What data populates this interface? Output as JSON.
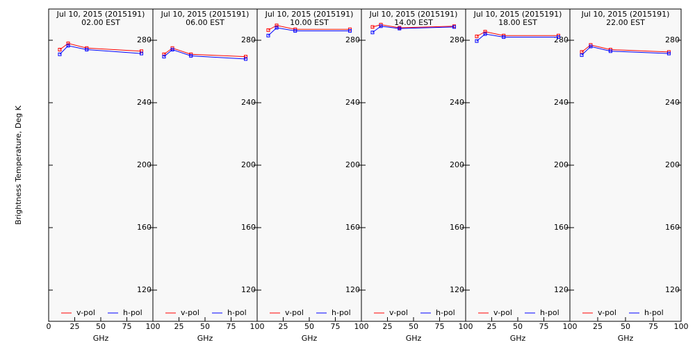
{
  "chart_data": [
    {
      "type": "line",
      "title": "Jul 10, 2015 (2015191)",
      "subtitle": "02.00 EST",
      "ylabel": "Brightness Temperature, Deg K",
      "xlabel": "GHz",
      "x": [
        10.65,
        18.7,
        36.5,
        89.0
      ],
      "xlim": [
        0,
        100
      ],
      "xticks": [
        0,
        25,
        50,
        75,
        100
      ],
      "ylim": [
        100,
        300
      ],
      "yticks": [
        120,
        160,
        200,
        240,
        280
      ],
      "series": [
        {
          "name": "v-pol",
          "color": "#ff0000",
          "values": [
            274,
            278,
            275,
            273
          ]
        },
        {
          "name": "h-pol",
          "color": "#0000ff",
          "values": [
            271,
            276.5,
            274,
            271.5
          ]
        }
      ]
    },
    {
      "type": "line",
      "title": "Jul 10, 2015 (2015191)",
      "subtitle": "06.00 EST",
      "xlabel": "GHz",
      "x": [
        10.65,
        18.7,
        36.5,
        89.0
      ],
      "xlim": [
        0,
        100
      ],
      "xticks": [
        25,
        50,
        75,
        100
      ],
      "ylim": [
        100,
        300
      ],
      "yticks": [
        120,
        160,
        200,
        240,
        280
      ],
      "series": [
        {
          "name": "v-pol",
          "color": "#ff0000",
          "values": [
            271,
            275,
            271,
            269.5
          ]
        },
        {
          "name": "h-pol",
          "color": "#0000ff",
          "values": [
            269.5,
            274,
            270,
            268
          ]
        }
      ]
    },
    {
      "type": "line",
      "title": "Jul 10, 2015 (2015191)",
      "subtitle": "10.00 EST",
      "xlabel": "GHz",
      "x": [
        10.65,
        18.7,
        36.5,
        89.0
      ],
      "xlim": [
        0,
        100
      ],
      "xticks": [
        25,
        50,
        75,
        100
      ],
      "ylim": [
        100,
        300
      ],
      "yticks": [
        120,
        160,
        200,
        240,
        280
      ],
      "series": [
        {
          "name": "v-pol",
          "color": "#ff0000",
          "values": [
            286.5,
            289.5,
            287,
            287
          ]
        },
        {
          "name": "h-pol",
          "color": "#0000ff",
          "values": [
            283,
            288,
            286,
            286
          ]
        }
      ]
    },
    {
      "type": "line",
      "title": "Jul 10, 2015 (2015191)",
      "subtitle": "14.00 EST",
      "xlabel": "GHz",
      "x": [
        10.65,
        18.7,
        36.5,
        89.0
      ],
      "xlim": [
        0,
        100
      ],
      "xticks": [
        25,
        50,
        75,
        100
      ],
      "ylim": [
        100,
        300
      ],
      "yticks": [
        120,
        160,
        200,
        240,
        280
      ],
      "series": [
        {
          "name": "v-pol",
          "color": "#ff0000",
          "values": [
            288.5,
            290,
            288,
            289
          ]
        },
        {
          "name": "h-pol",
          "color": "#0000ff",
          "values": [
            285,
            289,
            287.5,
            288.5
          ]
        }
      ]
    },
    {
      "type": "line",
      "title": "Jul 10, 2015 (2015191)",
      "subtitle": "18.00 EST",
      "xlabel": "GHz",
      "x": [
        10.65,
        18.7,
        36.5,
        89.0
      ],
      "xlim": [
        0,
        100
      ],
      "xticks": [
        25,
        50,
        75,
        100
      ],
      "ylim": [
        100,
        300
      ],
      "yticks": [
        120,
        160,
        200,
        240,
        280
      ],
      "series": [
        {
          "name": "v-pol",
          "color": "#ff0000",
          "values": [
            282.5,
            285.5,
            283,
            283
          ]
        },
        {
          "name": "h-pol",
          "color": "#0000ff",
          "values": [
            279.5,
            284,
            282,
            282
          ]
        }
      ]
    },
    {
      "type": "line",
      "title": "Jul 10, 2015 (2015191)",
      "subtitle": "22.00 EST",
      "xlabel": "GHz",
      "x": [
        10.65,
        18.7,
        36.5,
        89.0
      ],
      "xlim": [
        0,
        100
      ],
      "xticks": [
        25,
        50,
        75,
        100
      ],
      "ylim": [
        100,
        300
      ],
      "yticks": [
        120,
        160,
        200,
        240,
        280
      ],
      "series": [
        {
          "name": "v-pol",
          "color": "#ff0000",
          "values": [
            272.5,
            277,
            274,
            272.5
          ]
        },
        {
          "name": "h-pol",
          "color": "#0000ff",
          "values": [
            270.5,
            276,
            273,
            271.5
          ]
        }
      ]
    }
  ]
}
